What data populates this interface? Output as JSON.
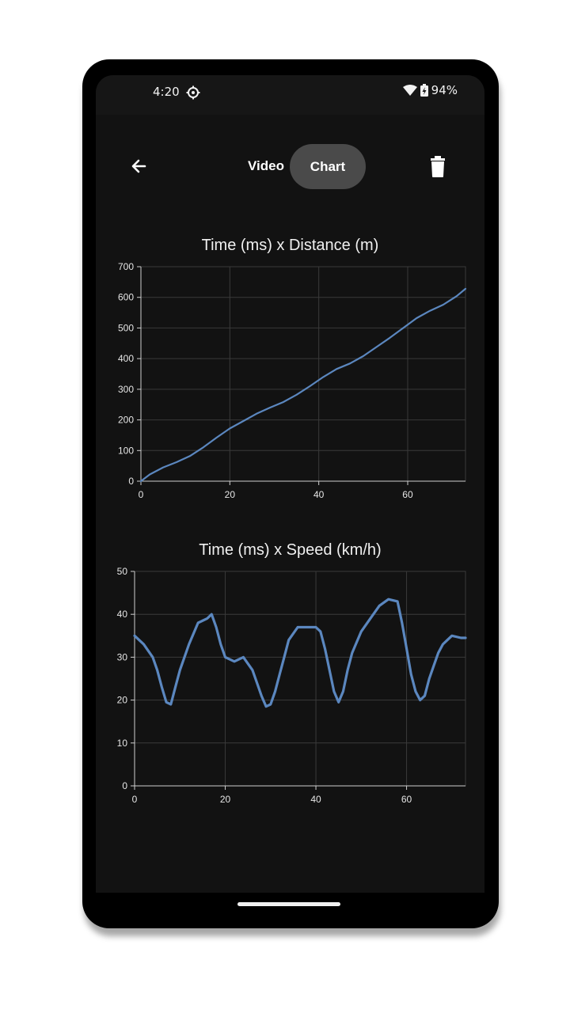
{
  "status_bar": {
    "time": "4:20",
    "battery": "94%"
  },
  "app_bar": {
    "tabs": [
      {
        "label": "Video",
        "selected": false
      },
      {
        "label": "Chart",
        "selected": true
      }
    ]
  },
  "icons": {
    "back": "arrow-left-icon",
    "delete": "trash-icon",
    "settings": "gear-icon",
    "wifi": "wifi-icon",
    "battery": "battery-charging-icon"
  },
  "colors": {
    "background": "#121212",
    "line": "#5b87bf",
    "selected_tab": "#4a4a4a",
    "grid": "#3a3a3a"
  },
  "chart_data": [
    {
      "type": "line",
      "title": "Time (ms) x Distance (m)",
      "xlim": [
        0,
        73
      ],
      "ylim": [
        0,
        700
      ],
      "xticks": [
        0,
        20,
        40,
        60
      ],
      "yticks": [
        0,
        100,
        200,
        300,
        400,
        500,
        600,
        700
      ],
      "grid": true,
      "series": [
        {
          "x": [
            0,
            2,
            5,
            8,
            11,
            14,
            17,
            20,
            23,
            26,
            29,
            32,
            35,
            38,
            41,
            44,
            47,
            50,
            53,
            56,
            59,
            62,
            65,
            68,
            71,
            73
          ],
          "y": [
            0,
            22,
            45,
            62,
            82,
            110,
            142,
            172,
            196,
            220,
            240,
            258,
            282,
            310,
            340,
            366,
            384,
            408,
            438,
            468,
            500,
            532,
            556,
            576,
            604,
            628
          ]
        }
      ]
    },
    {
      "type": "line",
      "title": "Time (ms) x Speed (km/h)",
      "xlim": [
        0,
        73
      ],
      "ylim": [
        0,
        50
      ],
      "xticks": [
        0,
        20,
        40,
        60
      ],
      "yticks": [
        0,
        10,
        20,
        30,
        40,
        50
      ],
      "grid": true,
      "series": [
        {
          "x": [
            0,
            2,
            4,
            5,
            6,
            7,
            8,
            9,
            10,
            12,
            14,
            16,
            17,
            18,
            19,
            20,
            22,
            24,
            26,
            27,
            28,
            29,
            30,
            31,
            32,
            33,
            34,
            36,
            38,
            40,
            41,
            42,
            43,
            44,
            45,
            46,
            47,
            48,
            50,
            52,
            54,
            56,
            58,
            59,
            60,
            61,
            62,
            63,
            64,
            65,
            66,
            67,
            68,
            69,
            70,
            72,
            73
          ],
          "y": [
            35,
            33,
            30,
            27,
            23,
            19.5,
            19,
            23,
            27,
            33,
            38,
            39,
            40,
            37,
            33,
            30,
            29,
            30,
            27,
            24,
            21,
            18.5,
            19,
            22,
            26,
            30,
            34,
            37,
            37,
            37,
            36,
            32,
            27,
            22,
            19.5,
            22,
            27,
            31,
            36,
            39,
            42,
            43.5,
            43,
            38,
            32,
            26,
            22,
            20,
            21,
            25,
            28,
            31,
            33,
            34,
            35,
            34.5,
            34.5
          ]
        }
      ]
    }
  ]
}
